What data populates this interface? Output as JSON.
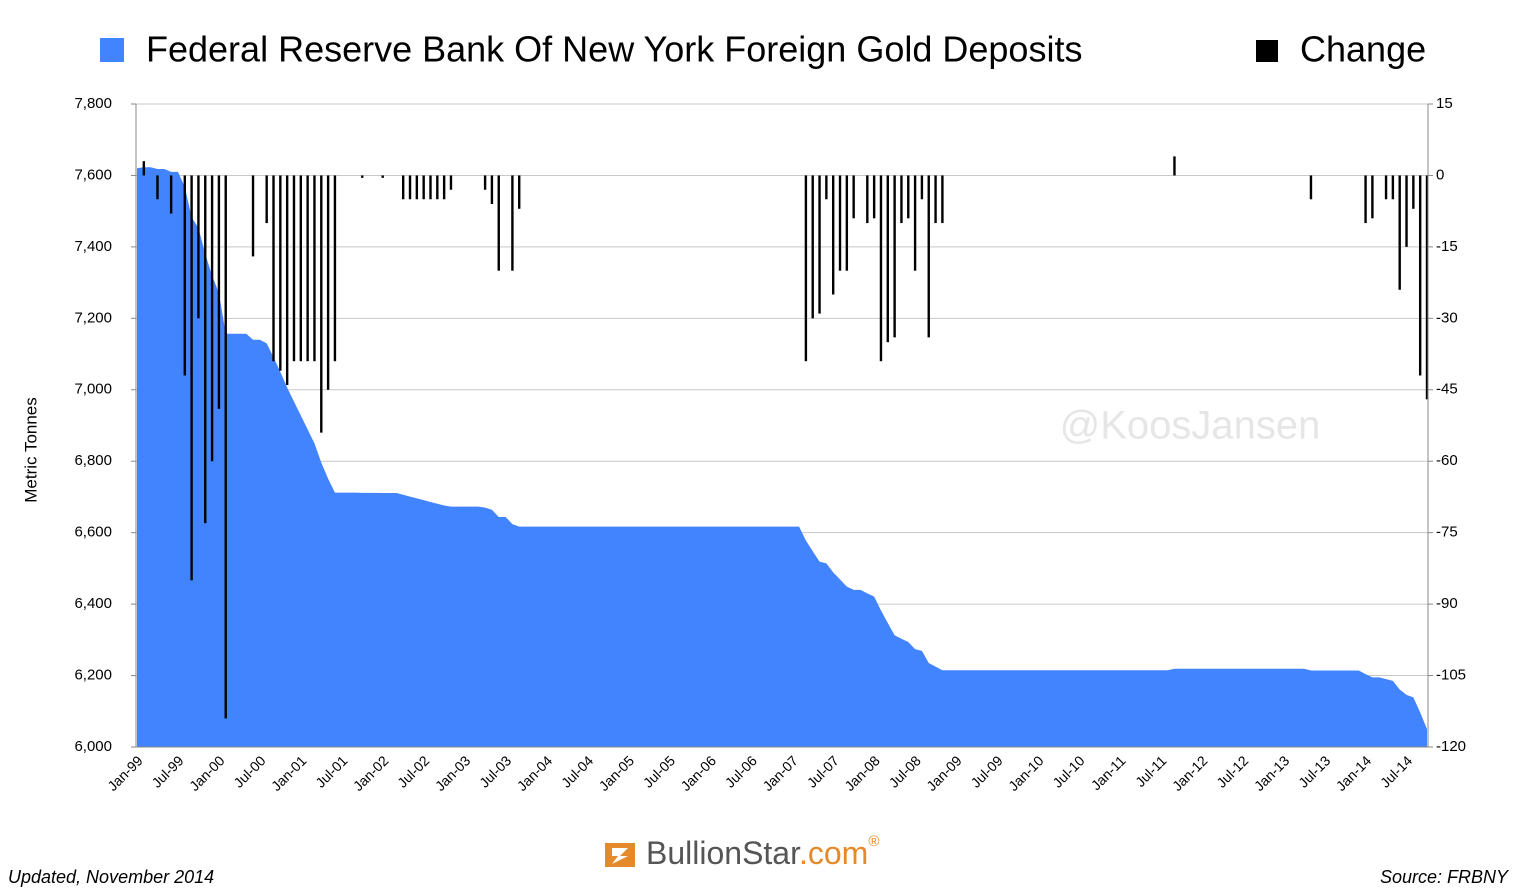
{
  "chart_data": {
    "type": "area",
    "y_label": "Metric Tonnes",
    "watermark": "@KoosJansen",
    "footer_left": "Updated, November 2014",
    "footer_right": "Source: FRBNY",
    "logo": {
      "name": "BullionStar",
      "domain": ".com",
      "mark": "®"
    },
    "categories": [
      "Jan-99",
      null,
      null,
      null,
      null,
      null,
      "Jul-99",
      null,
      null,
      null,
      null,
      null,
      "Jan-00",
      null,
      null,
      null,
      null,
      null,
      "Jul-00",
      null,
      null,
      null,
      null,
      null,
      "Jan-01",
      null,
      null,
      null,
      null,
      null,
      "Jul-01",
      null,
      null,
      null,
      null,
      null,
      "Jan-02",
      null,
      null,
      null,
      null,
      null,
      "Jul-02",
      null,
      null,
      null,
      null,
      null,
      "Jan-03",
      null,
      null,
      null,
      null,
      null,
      "Jul-03",
      null,
      null,
      null,
      null,
      null,
      "Jan-04",
      null,
      null,
      null,
      null,
      null,
      "Jul-04",
      null,
      null,
      null,
      null,
      null,
      "Jan-05",
      null,
      null,
      null,
      null,
      null,
      "Jul-05",
      null,
      null,
      null,
      null,
      null,
      "Jan-06",
      null,
      null,
      null,
      null,
      null,
      "Jul-06",
      null,
      null,
      null,
      null,
      null,
      "Jan-07",
      null,
      null,
      null,
      null,
      null,
      "Jul-07",
      null,
      null,
      null,
      null,
      null,
      "Jan-08",
      null,
      null,
      null,
      null,
      null,
      "Jul-08",
      null,
      null,
      null,
      null,
      null,
      "Jan-09",
      null,
      null,
      null,
      null,
      null,
      "Jul-09",
      null,
      null,
      null,
      null,
      null,
      "Jan-10",
      null,
      null,
      null,
      null,
      null,
      "Jul-10",
      null,
      null,
      null,
      null,
      null,
      "Jan-11",
      null,
      null,
      null,
      null,
      null,
      "Jul-11",
      null,
      null,
      null,
      null,
      null,
      "Jan-12",
      null,
      null,
      null,
      null,
      null,
      "Jul-12",
      null,
      null,
      null,
      null,
      null,
      "Jan-13",
      null,
      null,
      null,
      null,
      null,
      "Jul-13",
      null,
      null,
      null,
      null,
      null,
      "Jan-14",
      null,
      null,
      null,
      null,
      null,
      "Jul-14",
      null,
      null,
      null
    ],
    "series": [
      {
        "name": "Federal Reserve Bank Of New York Foreign Gold Deposits",
        "type": "area",
        "color": "#4184fd",
        "values": [
          7620,
          7623,
          7623,
          7618,
          7618,
          7610,
          7610,
          7568,
          7483,
          7453,
          7380,
          7320,
          7271,
          7157,
          7157,
          7157,
          7157,
          7140,
          7140,
          7130,
          7091,
          7050,
          7006,
          6967,
          6928,
          6889,
          6850,
          6796,
          6751,
          6712,
          6712,
          6712,
          6712,
          6711.5,
          6711.5,
          6711.5,
          6711,
          6711,
          6711,
          6706,
          6701,
          6696,
          6691,
          6686,
          6681,
          6676,
          6673,
          6673,
          6673,
          6673,
          6673,
          6670,
          6664,
          6644,
          6644,
          6624,
          6617,
          6617,
          6617,
          6617,
          6617,
          6617,
          6617,
          6617,
          6617,
          6617,
          6617,
          6617,
          6617,
          6617,
          6617,
          6617,
          6617,
          6617,
          6617,
          6617,
          6617,
          6617,
          6617,
          6617,
          6617,
          6617,
          6617,
          6617,
          6617,
          6617,
          6617,
          6617,
          6617,
          6617,
          6617,
          6617,
          6617,
          6617,
          6617,
          6617,
          6617,
          6617,
          6578,
          6548,
          6519,
          6514,
          6489,
          6469,
          6449,
          6440,
          6440,
          6430,
          6421,
          6382,
          6347,
          6313,
          6303,
          6294,
          6274,
          6269,
          6235,
          6225,
          6215,
          6215,
          6215,
          6215,
          6215,
          6215,
          6215,
          6215,
          6215,
          6215,
          6215,
          6215,
          6215,
          6215,
          6215,
          6215,
          6215,
          6215,
          6215,
          6215,
          6215,
          6215,
          6215,
          6215,
          6215,
          6215,
          6215,
          6215,
          6215,
          6215,
          6215,
          6215,
          6215,
          6215,
          6219,
          6219,
          6219,
          6219,
          6219,
          6219,
          6219,
          6219,
          6219,
          6219,
          6219,
          6219,
          6219,
          6219,
          6219,
          6219,
          6219,
          6219,
          6219,
          6219,
          6214,
          6214,
          6214,
          6214,
          6214,
          6214,
          6214,
          6214,
          6204,
          6195,
          6195,
          6190,
          6185,
          6161,
          6146,
          6139,
          6097,
          6050
        ]
      },
      {
        "name": "Change",
        "type": "bar",
        "axis": "y2",
        "color": "#000000",
        "values": [
          null,
          3,
          null,
          -5,
          null,
          -8,
          null,
          -42,
          -85,
          -30,
          -73,
          -60,
          -49,
          -114,
          null,
          null,
          null,
          -17,
          null,
          -10,
          -39,
          -41,
          -44,
          -39,
          -39,
          -39,
          -39,
          -54,
          -45,
          -39,
          null,
          null,
          null,
          -0.5,
          null,
          null,
          -0.5,
          null,
          null,
          -5,
          -5,
          -5,
          -5,
          -5,
          -5,
          -5,
          -3,
          null,
          null,
          null,
          null,
          -3,
          -6,
          -20,
          null,
          -20,
          -7,
          null,
          null,
          null,
          null,
          null,
          null,
          null,
          null,
          null,
          null,
          null,
          null,
          null,
          null,
          null,
          null,
          null,
          null,
          null,
          null,
          null,
          null,
          null,
          null,
          null,
          null,
          null,
          null,
          null,
          null,
          null,
          null,
          null,
          null,
          null,
          null,
          null,
          null,
          null,
          null,
          null,
          -39,
          -30,
          -29,
          -5,
          -25,
          -20,
          -20,
          -9,
          null,
          -10,
          -9,
          -39,
          -35,
          -34,
          -10,
          -9,
          -20,
          -5,
          -34,
          -10,
          -10,
          null,
          null,
          null,
          null,
          null,
          null,
          null,
          null,
          null,
          null,
          null,
          null,
          null,
          null,
          null,
          null,
          null,
          null,
          null,
          null,
          null,
          null,
          null,
          null,
          null,
          null,
          null,
          null,
          null,
          null,
          null,
          null,
          null,
          4,
          null,
          null,
          null,
          null,
          null,
          null,
          null,
          null,
          null,
          null,
          null,
          null,
          null,
          null,
          null,
          null,
          null,
          null,
          null,
          -5,
          null,
          null,
          null,
          null,
          null,
          null,
          null,
          -10,
          -9,
          null,
          -5,
          -5,
          -24,
          -15,
          -7,
          -42,
          -47
        ]
      }
    ],
    "ylim": [
      6000,
      7800
    ],
    "yticks": [
      {
        "value": 6000,
        "label": "6,000"
      },
      {
        "value": 6200,
        "label": "6,200"
      },
      {
        "value": 6400,
        "label": "6,400"
      },
      {
        "value": 6600,
        "label": "6,600"
      },
      {
        "value": 6800,
        "label": "6,800"
      },
      {
        "value": 7000,
        "label": "7,000"
      },
      {
        "value": 7200,
        "label": "7,200"
      },
      {
        "value": 7400,
        "label": "7,400"
      },
      {
        "value": 7600,
        "label": "7,600"
      },
      {
        "value": 7800,
        "label": "7,800"
      }
    ],
    "y2lim": [
      -120,
      15
    ],
    "y2ticks": [
      -120,
      -105,
      -90,
      -75,
      -60,
      -45,
      -30,
      -15,
      0,
      15
    ],
    "grid": true
  }
}
